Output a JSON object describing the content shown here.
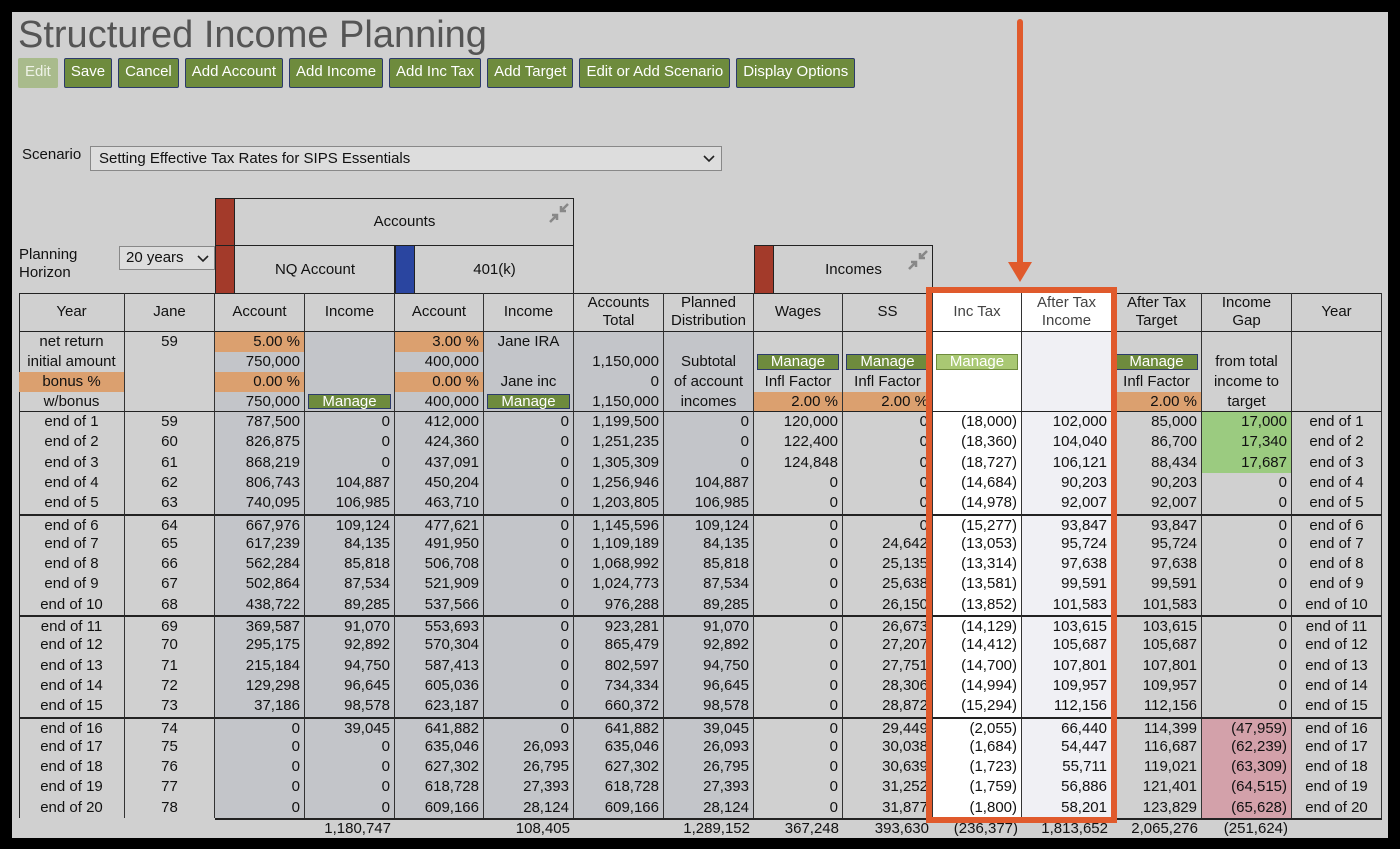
{
  "title": "Structured Income Planning",
  "buttons": [
    "Edit",
    "Save",
    "Cancel",
    "Add Account",
    "Add Income",
    "Add Inc Tax",
    "Add Target",
    "Edit or Add Scenario",
    "Display Options"
  ],
  "scenario": {
    "label": "Scenario",
    "value": "Setting Effective Tax Rates for SIPS Essentials"
  },
  "horizon": {
    "label": "Planning Horizon",
    "value": "20 years"
  },
  "groups": {
    "accounts": "Accounts",
    "nq": "NQ Account",
    "k401": "401(k)",
    "incomes": "Incomes"
  },
  "columns": [
    "Year",
    "Jane",
    "Account",
    "Income",
    "Account",
    "Income",
    "Accounts Total",
    "Planned Distribution",
    "Wages",
    "SS",
    "Inc Tax",
    "After Tax Income",
    "After Tax Target",
    "Income Gap",
    "Year"
  ],
  "params": [
    [
      "net return",
      "59",
      "5.00  %",
      null,
      "3.00  %",
      "Jane IRA",
      null,
      null,
      null,
      null,
      null,
      null,
      null,
      null,
      null
    ],
    [
      "initial amount",
      null,
      "750,000",
      null,
      "400,000",
      null,
      "1,150,000",
      "Subtotal",
      "Manage",
      "Manage",
      "Manage",
      null,
      "Manage",
      "from total",
      null
    ],
    [
      "bonus %",
      null,
      "0.00  %",
      null,
      "0.00  %",
      "Jane inc",
      "0",
      "of account",
      "Infl Factor",
      "Infl Factor",
      null,
      null,
      "Infl Factor",
      "income to",
      null
    ],
    [
      "w/bonus",
      null,
      "750,000",
      "Manage",
      "400,000",
      "Manage",
      "1,150,000",
      "incomes",
      "2.00  %",
      "2.00  %",
      null,
      null,
      "2.00  %",
      "target",
      null
    ]
  ],
  "rows": [
    [
      "end of 1",
      "59",
      "787,500",
      "0",
      "412,000",
      "0",
      "1,199,500",
      "0",
      "120,000",
      "0",
      "(18,000)",
      "102,000",
      "85,000",
      "17,000",
      "end of 1"
    ],
    [
      "end of 2",
      "60",
      "826,875",
      "0",
      "424,360",
      "0",
      "1,251,235",
      "0",
      "122,400",
      "0",
      "(18,360)",
      "104,040",
      "86,700",
      "17,340",
      "end of 2"
    ],
    [
      "end of 3",
      "61",
      "868,219",
      "0",
      "437,091",
      "0",
      "1,305,309",
      "0",
      "124,848",
      "0",
      "(18,727)",
      "106,121",
      "88,434",
      "17,687",
      "end of 3"
    ],
    [
      "end of 4",
      "62",
      "806,743",
      "104,887",
      "450,204",
      "0",
      "1,256,946",
      "104,887",
      "0",
      "0",
      "(14,684)",
      "90,203",
      "90,203",
      "0",
      "end of 4"
    ],
    [
      "end of 5",
      "63",
      "740,095",
      "106,985",
      "463,710",
      "0",
      "1,203,805",
      "106,985",
      "0",
      "0",
      "(14,978)",
      "92,007",
      "92,007",
      "0",
      "end of 5"
    ],
    [
      "end of 6",
      "64",
      "667,976",
      "109,124",
      "477,621",
      "0",
      "1,145,596",
      "109,124",
      "0",
      "0",
      "(15,277)",
      "93,847",
      "93,847",
      "0",
      "end of 6"
    ],
    [
      "end of 7",
      "65",
      "617,239",
      "84,135",
      "491,950",
      "0",
      "1,109,189",
      "84,135",
      "0",
      "24,642",
      "(13,053)",
      "95,724",
      "95,724",
      "0",
      "end of 7"
    ],
    [
      "end of 8",
      "66",
      "562,284",
      "85,818",
      "506,708",
      "0",
      "1,068,992",
      "85,818",
      "0",
      "25,135",
      "(13,314)",
      "97,638",
      "97,638",
      "0",
      "end of 8"
    ],
    [
      "end of 9",
      "67",
      "502,864",
      "87,534",
      "521,909",
      "0",
      "1,024,773",
      "87,534",
      "0",
      "25,638",
      "(13,581)",
      "99,591",
      "99,591",
      "0",
      "end of 9"
    ],
    [
      "end of 10",
      "68",
      "438,722",
      "89,285",
      "537,566",
      "0",
      "976,288",
      "89,285",
      "0",
      "26,150",
      "(13,852)",
      "101,583",
      "101,583",
      "0",
      "end of 10"
    ],
    [
      "end of 11",
      "69",
      "369,587",
      "91,070",
      "553,693",
      "0",
      "923,281",
      "91,070",
      "0",
      "26,673",
      "(14,129)",
      "103,615",
      "103,615",
      "0",
      "end of 11"
    ],
    [
      "end of 12",
      "70",
      "295,175",
      "92,892",
      "570,304",
      "0",
      "865,479",
      "92,892",
      "0",
      "27,207",
      "(14,412)",
      "105,687",
      "105,687",
      "0",
      "end of 12"
    ],
    [
      "end of 13",
      "71",
      "215,184",
      "94,750",
      "587,413",
      "0",
      "802,597",
      "94,750",
      "0",
      "27,751",
      "(14,700)",
      "107,801",
      "107,801",
      "0",
      "end of 13"
    ],
    [
      "end of 14",
      "72",
      "129,298",
      "96,645",
      "605,036",
      "0",
      "734,334",
      "96,645",
      "0",
      "28,306",
      "(14,994)",
      "109,957",
      "109,957",
      "0",
      "end of 14"
    ],
    [
      "end of 15",
      "73",
      "37,186",
      "98,578",
      "623,187",
      "0",
      "660,372",
      "98,578",
      "0",
      "28,872",
      "(15,294)",
      "112,156",
      "112,156",
      "0",
      "end of 15"
    ],
    [
      "end of 16",
      "74",
      "0",
      "39,045",
      "641,882",
      "0",
      "641,882",
      "39,045",
      "0",
      "29,449",
      "(2,055)",
      "66,440",
      "114,399",
      "(47,959)",
      "end of 16"
    ],
    [
      "end of 17",
      "75",
      "0",
      "0",
      "635,046",
      "26,093",
      "635,046",
      "26,093",
      "0",
      "30,038",
      "(1,684)",
      "54,447",
      "116,687",
      "(62,239)",
      "end of 17"
    ],
    [
      "end of 18",
      "76",
      "0",
      "0",
      "627,302",
      "26,795",
      "627,302",
      "26,795",
      "0",
      "30,639",
      "(1,723)",
      "55,711",
      "119,021",
      "(63,309)",
      "end of 18"
    ],
    [
      "end of 19",
      "77",
      "0",
      "0",
      "618,728",
      "27,393",
      "618,728",
      "27,393",
      "0",
      "31,252",
      "(1,759)",
      "56,886",
      "121,401",
      "(64,515)",
      "end of 19"
    ],
    [
      "end of 20",
      "78",
      "0",
      "0",
      "609,166",
      "28,124",
      "609,166",
      "28,124",
      "0",
      "31,877",
      "(1,800)",
      "58,201",
      "123,829",
      "(65,628)",
      "end of 20"
    ]
  ],
  "totals": [
    null,
    null,
    null,
    "1,180,747",
    null,
    "108,405",
    null,
    "1,289,152",
    "367,248",
    "393,630",
    "(236,377)",
    "1,813,652",
    "2,065,276",
    "(251,624)",
    null
  ]
}
